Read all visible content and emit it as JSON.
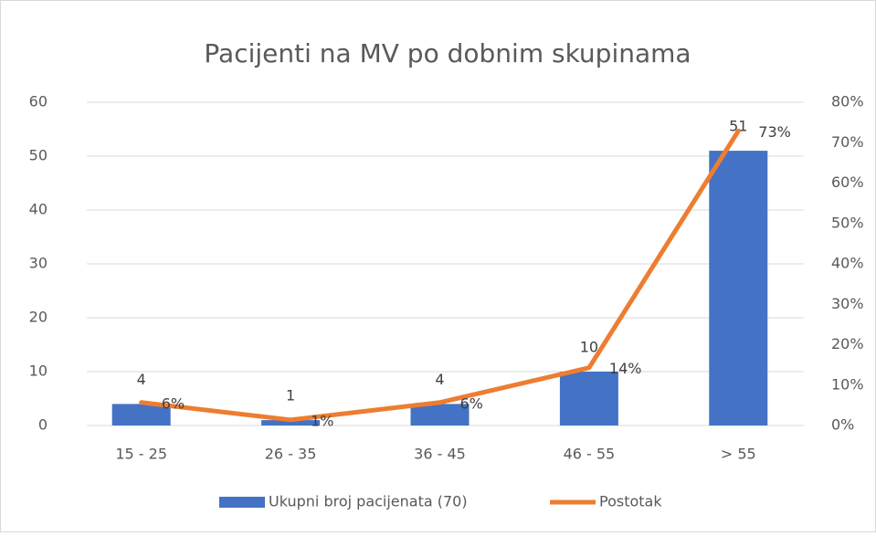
{
  "chart_data": {
    "type": "bar",
    "title": "Pacijenti na MV po dobnim skupinama",
    "categories": [
      "15 - 25",
      "26 - 35",
      "36 - 45",
      "46 - 55",
      "> 55"
    ],
    "series": [
      {
        "name": "Ukupni broj pacijenata (70)",
        "type": "bar",
        "color": "#4472c4",
        "values": [
          4,
          1,
          4,
          10,
          51
        ]
      },
      {
        "name": "Postotak",
        "type": "line",
        "axis": "y2",
        "color": "#ed7d31",
        "values": [
          5.7,
          1.4,
          5.7,
          14.3,
          72.9
        ],
        "value_labels": [
          "6%",
          "1%",
          "6%",
          "14%",
          "73%"
        ]
      }
    ],
    "ylim": [
      0,
      60
    ],
    "yticks": [
      0,
      10,
      20,
      30,
      40,
      50,
      60
    ],
    "y2lim": [
      0,
      80
    ],
    "y2ticks": [
      {
        "value": 0,
        "label": "0%"
      },
      {
        "value": 10,
        "label": "10%"
      },
      {
        "value": 20,
        "label": "20%"
      },
      {
        "value": 30,
        "label": "30%"
      },
      {
        "value": 40,
        "label": "40%"
      },
      {
        "value": 50,
        "label": "50%"
      },
      {
        "value": 60,
        "label": "60%"
      },
      {
        "value": 70,
        "label": "70%"
      },
      {
        "value": 80,
        "label": "80%"
      }
    ],
    "grid": true,
    "legend": "bottom"
  }
}
